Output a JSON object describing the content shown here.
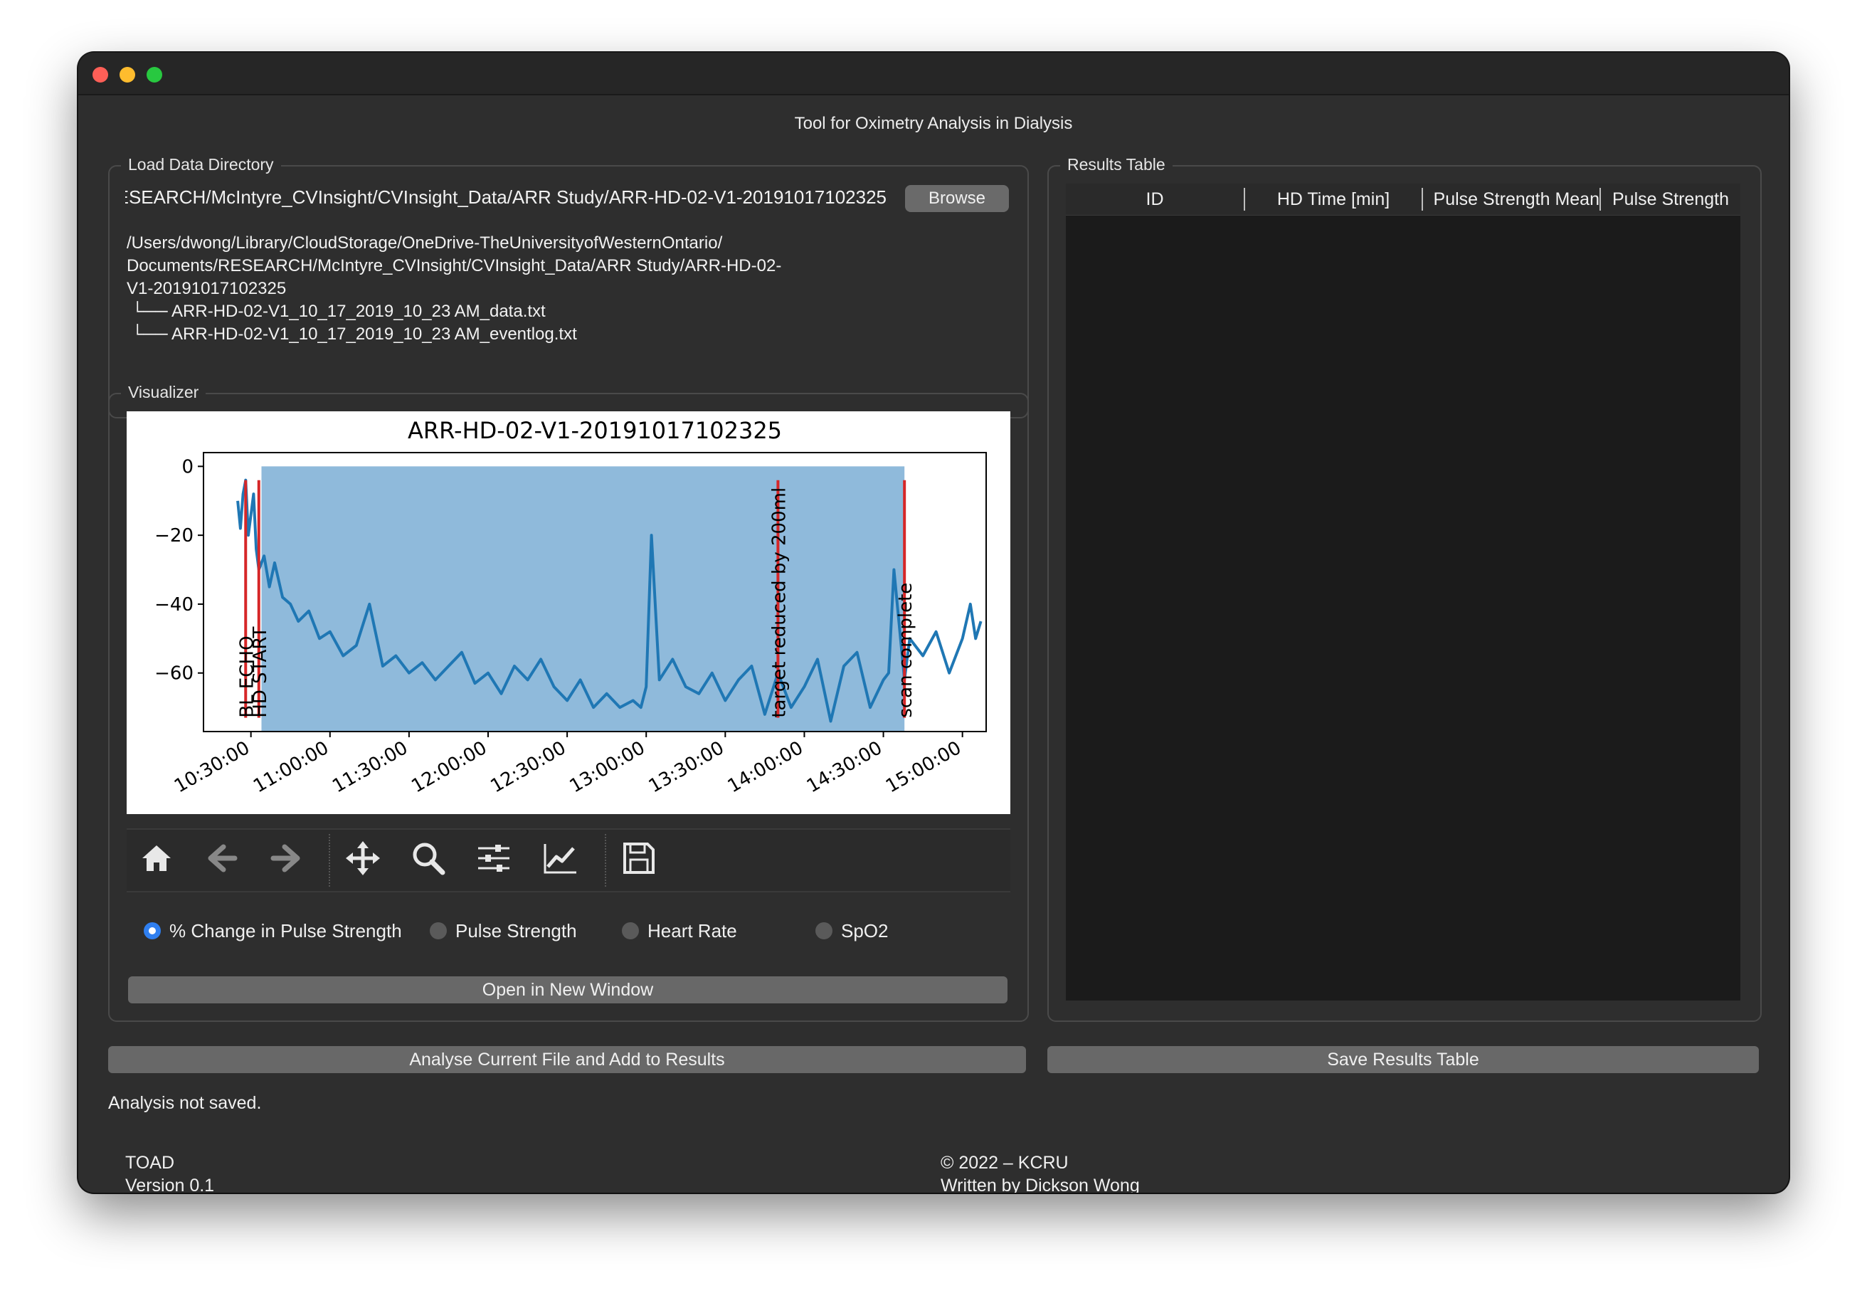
{
  "window": {
    "title": "Tool for Oximetry Analysis in Dialysis"
  },
  "load_group": {
    "title": "Load Data Directory",
    "path_value": "/Users/dwong/Library/CloudStorage/OneDrive-TheUniversityofWesternOntario/Documents/RESEARCH/McIntyre_CVInsight/CVInsight_Data/ARR Study/ARR-HD-02-V1-20191017102325",
    "browse_label": "Browse",
    "tree_lines": [
      "/Users/dwong/Library/CloudStorage/OneDrive-TheUniversityofWesternOntario/",
      "Documents/RESEARCH/McIntyre_CVInsight/CVInsight_Data/ARR Study/ARR-HD-02-",
      "V1-20191017102325",
      " └── ARR-HD-02-V1_10_17_2019_10_23 AM_data.txt",
      " └── ARR-HD-02-V1_10_17_2019_10_23 AM_eventlog.txt"
    ]
  },
  "visualizer": {
    "title": "Visualizer",
    "toolbar": {
      "home": "home-icon",
      "back": "arrow-left-icon",
      "forward": "arrow-right-icon",
      "pan": "move-icon",
      "zoom": "magnifier-icon",
      "configure": "sliders-icon",
      "edit_axis": "line-chart-icon",
      "save": "floppy-disk-icon"
    },
    "radio_options": [
      {
        "label": "% Change in Pulse Strength",
        "selected": true
      },
      {
        "label": "Pulse Strength",
        "selected": false
      },
      {
        "label": "Heart Rate",
        "selected": false
      },
      {
        "label": "SpO2",
        "selected": false
      }
    ],
    "open_window_label": "Open in New Window"
  },
  "results": {
    "title": "Results Table",
    "columns": [
      "ID",
      "HD Time [min]",
      "Pulse Strength Mean",
      "Pulse Strength"
    ]
  },
  "buttons": {
    "analyse_label": "Analyse Current File and Add to Results",
    "save_table_label": "Save Results Table"
  },
  "status": {
    "text": "Analysis not saved."
  },
  "footer": {
    "app_name": "TOAD",
    "version": "Version 0.1",
    "copyright": "© 2022 – KCRU",
    "author": "Written by Dickson Wong"
  },
  "colors": {
    "line": "#1f77b4",
    "fill": "#8fbadb",
    "event_line": "#d62728",
    "radio_selected": "#2f7ff0"
  },
  "chart_data": {
    "type": "line",
    "title": "ARR-HD-02-V1-20191017102325",
    "xlabel": "",
    "ylabel": "",
    "x_unit": "time (HH:MM:SS)",
    "xlim": [
      "10:12:00",
      "15:09:00"
    ],
    "ylim": [
      -77,
      4
    ],
    "yticks": [
      0,
      -20,
      -40,
      -60
    ],
    "xticks": [
      "10:30:00",
      "11:00:00",
      "11:30:00",
      "12:00:00",
      "12:30:00",
      "13:00:00",
      "13:30:00",
      "14:00:00",
      "14:30:00",
      "15:00:00"
    ],
    "series": [
      {
        "x": [
          "10:25:00",
          "10:26:00",
          "10:27:00",
          "10:28:00",
          "10:29:00",
          "10:30:00",
          "10:31:00",
          "10:32:00",
          "10:33:00",
          "10:35:00",
          "10:37:00",
          "10:39:00",
          "10:42:00",
          "10:45:00",
          "10:48:00",
          "10:52:00",
          "10:56:00",
          "11:00:00",
          "11:05:00",
          "11:10:00",
          "11:15:00",
          "11:20:00",
          "11:25:00",
          "11:30:00",
          "11:35:00",
          "11:40:00",
          "11:45:00",
          "11:50:00",
          "11:55:00",
          "12:00:00",
          "12:05:00",
          "12:10:00",
          "12:15:00",
          "12:20:00",
          "12:25:00",
          "12:30:00",
          "12:35:00",
          "12:40:00",
          "12:45:00",
          "12:50:00",
          "12:55:00",
          "12:58:00",
          "13:00:00",
          "13:02:00",
          "13:05:00",
          "13:10:00",
          "13:15:00",
          "13:20:00",
          "13:25:00",
          "13:30:00",
          "13:35:00",
          "13:40:00",
          "13:45:00",
          "13:50:00",
          "13:55:00",
          "14:00:00",
          "14:05:00",
          "14:10:00",
          "14:15:00",
          "14:20:00",
          "14:25:00",
          "14:30:00",
          "14:32:00",
          "14:34:00",
          "14:36:00",
          "14:38:00",
          "14:40:00",
          "14:45:00",
          "14:50:00",
          "14:55:00",
          "15:00:00",
          "15:03:00",
          "15:05:00",
          "15:07:00"
        ],
        "y": [
          -10,
          -18,
          -8,
          -4,
          -20,
          -14,
          -8,
          -24,
          -30,
          -26,
          -35,
          -28,
          -38,
          -40,
          -45,
          -42,
          -50,
          -48,
          -55,
          -52,
          -40,
          -58,
          -55,
          -60,
          -57,
          -62,
          -58,
          -54,
          -63,
          -60,
          -66,
          -58,
          -62,
          -56,
          -64,
          -68,
          -62,
          -70,
          -66,
          -70,
          -68,
          -70,
          -64,
          -20,
          -62,
          -56,
          -64,
          -66,
          -60,
          -68,
          -62,
          -58,
          -72,
          -60,
          -70,
          -64,
          -56,
          -74,
          -58,
          -54,
          -70,
          -62,
          -60,
          -30,
          -46,
          -62,
          -50,
          -55,
          -48,
          -60,
          -50,
          -40,
          -50,
          -45
        ]
      }
    ],
    "shaded_region": {
      "x_start": "10:34:00",
      "x_end": "14:38:00",
      "y_top": 0
    },
    "events": [
      {
        "x": "10:28:00",
        "label": "BL ECHO"
      },
      {
        "x": "10:33:00",
        "label": "HD START"
      },
      {
        "x": "13:50:00",
        "label": "target reduced by 200ml"
      },
      {
        "x": "14:38:00",
        "label": "scan complete"
      }
    ]
  }
}
